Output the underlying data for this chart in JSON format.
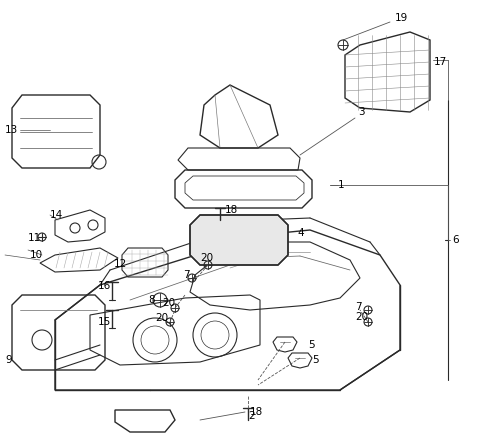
{
  "bg_color": "#ffffff",
  "line_color": "#2a2a2a",
  "dashed_color": "#555555",
  "fig_width": 4.8,
  "fig_height": 4.4,
  "dpi": 100
}
